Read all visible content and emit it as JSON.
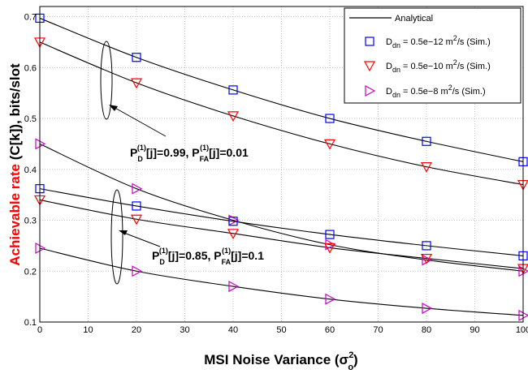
{
  "chart_data": {
    "type": "line",
    "xlabel": "MSI Noise Variance (σ",
    "xlabel_sup": "2",
    "xlabel_sub": "o",
    "xlabel_end": ")",
    "ylabel_red": "Achievable rate",
    "ylabel_black": " (C[k]), bits/slot",
    "xlim": [
      0,
      100
    ],
    "ylim": [
      0.1,
      0.72
    ],
    "xticks": [
      0,
      10,
      20,
      30,
      40,
      50,
      60,
      70,
      80,
      90,
      100
    ],
    "yticks": [
      0.1,
      0.2,
      0.3,
      0.4,
      0.5,
      0.6,
      0.7
    ],
    "grid": true,
    "legend_position": "top-right",
    "legend": {
      "analytical": "Analytical",
      "entries": [
        {
          "pre": "D",
          "sub": "dn",
          "mid": " = 0.5e−12 m",
          "sup": "2",
          "post": "/s   (Sim.)",
          "marker": "square",
          "color": "#0000ff"
        },
        {
          "pre": "D",
          "sub": "dn",
          "mid": " = 0.5e−10 m",
          "sup": "2",
          "post": "/s   (Sim.)",
          "marker": "triangle-down",
          "color": "#ff0000"
        },
        {
          "pre": "D",
          "sub": "dn",
          "mid": " = 0.5e−8 m",
          "sup": "2",
          "post": "/s   (Sim.)",
          "marker": "triangle-right",
          "color": "#cc00cc"
        }
      ]
    },
    "annotations": [
      {
        "p": "P",
        "sub1": "D",
        "sup1": "(1)",
        "a": "[j]=0.99, P",
        "sub2": "FA",
        "sup2": "(1)",
        "b": "[j]=0.01"
      },
      {
        "p": "P",
        "sub1": "D",
        "sup1": "(1)",
        "a": "[j]=0.85, P",
        "sub2": "FA",
        "sup2": "(1)",
        "b": "[j]=0.1"
      }
    ],
    "x": [
      0,
      20,
      40,
      60,
      80,
      100
    ],
    "series": [
      {
        "group": 1,
        "marker": "square",
        "color": "#0000ff",
        "values": [
          0.697,
          0.62,
          0.556,
          0.5,
          0.455,
          0.415
        ]
      },
      {
        "group": 1,
        "marker": "triangle-down",
        "color": "#ff0000",
        "values": [
          0.65,
          0.57,
          0.505,
          0.45,
          0.405,
          0.37
        ]
      },
      {
        "group": 2,
        "marker": "triangle-right",
        "color": "#cc00cc",
        "values": [
          0.45,
          0.362,
          0.3,
          0.252,
          0.222,
          0.2
        ]
      },
      {
        "group": 2,
        "marker": "square",
        "color": "#0000ff",
        "values": [
          0.362,
          0.328,
          0.298,
          0.272,
          0.25,
          0.23
        ]
      },
      {
        "group": 2,
        "marker": "triangle-down",
        "color": "#ff0000",
        "values": [
          0.34,
          0.302,
          0.274,
          0.246,
          0.225,
          0.205
        ]
      },
      {
        "group": 2,
        "marker": "triangle-right",
        "color": "#cc00cc",
        "values": [
          0.245,
          0.2,
          0.17,
          0.145,
          0.127,
          0.113
        ]
      }
    ]
  }
}
